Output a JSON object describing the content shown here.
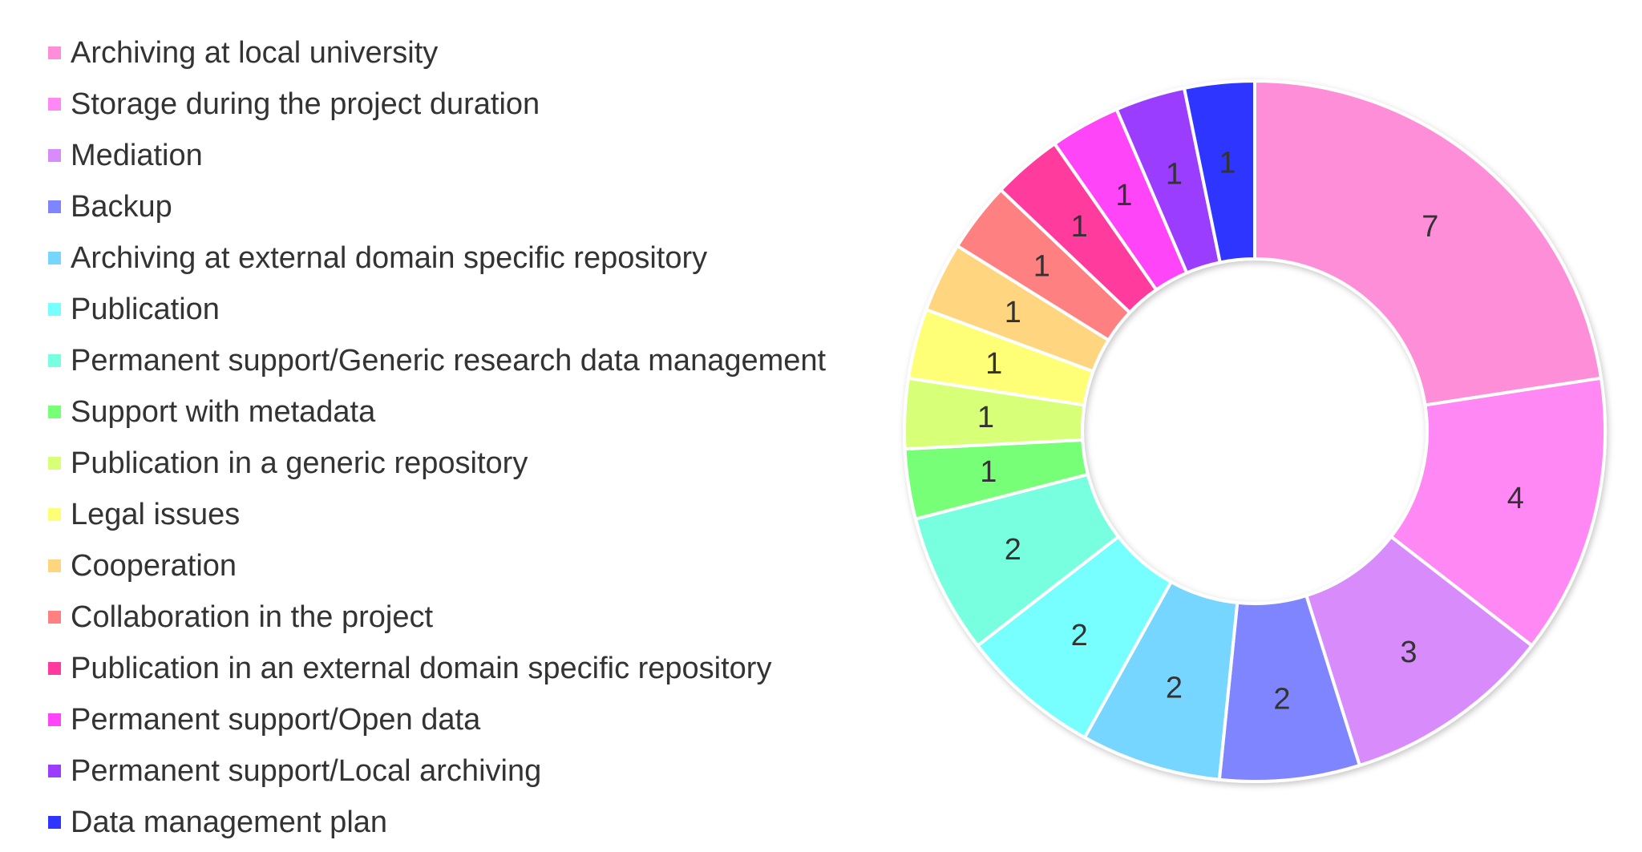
{
  "chart_data": {
    "type": "pie",
    "variant": "donut",
    "legend_position": "left",
    "categories": [
      "Archiving at local university",
      "Storage during the project duration",
      "Mediation",
      "Backup",
      "Archiving at external domain specific repository",
      "Publication",
      "Permanent support/Generic research data management",
      "Support with metadata",
      "Publication in a generic repository",
      "Legal issues",
      "Cooperation",
      "Collaboration in the project",
      "Publication in an external domain specific repository",
      "Permanent support/Open data",
      "Permanent support/Local archiving",
      "Data management plan"
    ],
    "values": [
      7,
      4,
      3,
      2,
      2,
      2,
      2,
      1,
      1,
      1,
      1,
      1,
      1,
      1,
      1,
      1
    ],
    "colors": [
      "#ff8ed9",
      "#ff88f5",
      "#d88cfb",
      "#7f85ff",
      "#77d6ff",
      "#77ffff",
      "#77ffdf",
      "#77ff77",
      "#d7ff77",
      "#ffff77",
      "#ffd67f",
      "#ff8080",
      "#ff3a9e",
      "#ff45f7",
      "#9b3dff",
      "#2d35ff"
    ]
  }
}
